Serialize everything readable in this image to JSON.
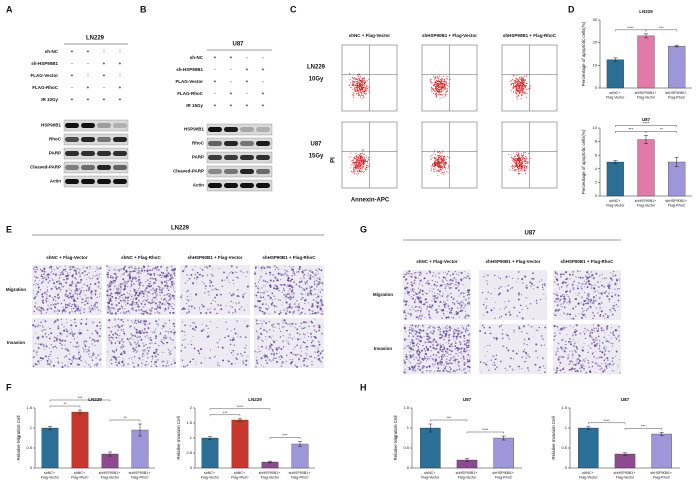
{
  "panel_labels": [
    "A",
    "B",
    "C",
    "D",
    "E",
    "F",
    "G",
    "H"
  ],
  "blot_a": {
    "cell_line": "LN229",
    "rows": [
      {
        "label": "sh-NC",
        "signs": [
          "+",
          "+",
          "-",
          "-"
        ]
      },
      {
        "label": "sh-HSP90B1",
        "signs": [
          "-",
          "-",
          "+",
          "+"
        ]
      },
      {
        "label": "FLAG-Vector",
        "signs": [
          "+",
          "-",
          "+",
          "-"
        ]
      },
      {
        "label": "FLAG-RhoC",
        "signs": [
          "-",
          "+",
          "-",
          "+"
        ]
      },
      {
        "label": "IR 10Gy",
        "signs": [
          "+",
          "+",
          "+",
          "+"
        ]
      }
    ],
    "bands": [
      "HSP90B1",
      "RhoC",
      "PARP",
      "Cleaved-PARP",
      "Actin"
    ]
  },
  "blot_b": {
    "cell_line": "U87",
    "rows": [
      {
        "label": "sh-NC",
        "signs": [
          "+",
          "+",
          "-",
          "-"
        ]
      },
      {
        "label": "sh-HSP90B1",
        "signs": [
          "-",
          "-",
          "+",
          "+"
        ]
      },
      {
        "label": "FLAG-Vector",
        "signs": [
          "+",
          "-",
          "+",
          "-"
        ]
      },
      {
        "label": "FLAG-RhoC",
        "signs": [
          "-",
          "+",
          "-",
          "+"
        ]
      },
      {
        "label": "IR 15Gy",
        "signs": [
          "+",
          "+",
          "+",
          "+"
        ]
      }
    ],
    "bands": [
      "HSP90B1",
      "RhoC",
      "PARP",
      "Cleaved-PARP",
      "Actin"
    ]
  },
  "flow": {
    "columns": [
      "shNC + Flag-Vector",
      "shHSP90B1 + Flag-Vector",
      "shHSP90B1 + Flag-RhoC"
    ],
    "rows": [
      [
        "LN229",
        "10Gy"
      ],
      [
        "U87",
        "15Gy"
      ]
    ],
    "y_label": "PI",
    "x_label": "Annexin-APC"
  },
  "microscopy_e": {
    "title": "LN229",
    "columns": [
      "shNC + Flag-Vector",
      "shNC + Flag-RhoC",
      "shHSP90B1 + Flag-Vector",
      "shHSP90B1 + Flag-RhoC"
    ],
    "rows": [
      "Migration",
      "Invasion"
    ]
  },
  "microscopy_g": {
    "title": "U87",
    "columns": [
      "shNC + Flag-Vector",
      "shHSP90B1 + Flag-Vector",
      "shHSP90B1 + Flag-RhoC"
    ],
    "rows": [
      "Migration",
      "Invasion"
    ]
  },
  "chart_data": [
    {
      "type": "bar",
      "title": "LN229",
      "y_label": "Percentage of apoptotic cells(%)",
      "categories": [
        "shNC+ Flag-Vector",
        "shHSP90B1+ Flag-Vector",
        "shHSP90B1+ Flag-RhoC"
      ],
      "values": [
        12.5,
        23,
        18.5
      ],
      "errors": [
        0.8,
        0.9,
        0.4
      ],
      "colors": [
        "#2b6e96",
        "#e07aa9",
        "#9d97d9"
      ],
      "ylim": [
        0,
        30
      ],
      "yticks": [
        0,
        10,
        20,
        30
      ],
      "significance": [
        {
          "pair": [
            0,
            1
          ],
          "label": "****"
        },
        {
          "pair": [
            1,
            2
          ],
          "label": "***"
        }
      ]
    },
    {
      "type": "bar",
      "title": "U87",
      "y_label": "Percentage of apoptotic cells(%)",
      "categories": [
        "shNC+ Flag-Vector",
        "shHSP90B1+ Flag-Vector",
        "shHSP90B1+ Flag-RhoC"
      ],
      "values": [
        5,
        8.3,
        5
      ],
      "errors": [
        0.2,
        0.6,
        0.7
      ],
      "colors": [
        "#2b6e96",
        "#e07aa9",
        "#9d97d9"
      ],
      "ylim": [
        0,
        10
      ],
      "yticks": [
        0,
        2,
        4,
        6,
        8,
        10
      ],
      "significance": [
        {
          "pair": [
            0,
            1
          ],
          "label": "***"
        },
        {
          "pair": [
            1,
            2
          ],
          "label": "**"
        },
        {
          "pair": [
            0,
            2
          ],
          "label": "****"
        }
      ]
    },
    {
      "type": "bar",
      "title": "LN229",
      "y_label": "Relative Migration Cell",
      "categories": [
        "shNC+ Flag-Vector",
        "shNC+ Flag-RhoC",
        "shHSP90B1+ Flag-Vector",
        "shHSP90B1+ Flag-RhoC"
      ],
      "values": [
        1.0,
        1.4,
        0.35,
        0.95
      ],
      "errors": [
        0.04,
        0.05,
        0.05,
        0.15
      ],
      "colors": [
        "#2b6e96",
        "#c8372d",
        "#8c4a8f",
        "#9d97d9"
      ],
      "ylim": [
        0,
        1.5
      ],
      "yticks": [
        0,
        0.5,
        1,
        1.5
      ],
      "significance": [
        {
          "pair": [
            0,
            1
          ],
          "label": "**"
        },
        {
          "pair": [
            2,
            3
          ],
          "label": "**"
        },
        {
          "pair": [
            0,
            2
          ],
          "label": "***"
        }
      ]
    },
    {
      "type": "bar",
      "title": "LN229",
      "y_label": "Relative Invasion Cell",
      "categories": [
        "shNC+ Flag-Vector",
        "shNC+ Flag-RhoC",
        "shHSP90B1+ Flag-Vector",
        "shHSP90B1+ Flag-RhoC"
      ],
      "values": [
        1.0,
        1.6,
        0.2,
        0.8
      ],
      "errors": [
        0.05,
        0.04,
        0.03,
        0.08
      ],
      "colors": [
        "#2b6e96",
        "#c8372d",
        "#8c4a8f",
        "#9d97d9"
      ],
      "ylim": [
        0,
        2
      ],
      "yticks": [
        0,
        0.5,
        1,
        1.5,
        2
      ],
      "significance": [
        {
          "pair": [
            0,
            1
          ],
          "label": "***"
        },
        {
          "pair": [
            2,
            3
          ],
          "label": "***"
        },
        {
          "pair": [
            0,
            2
          ],
          "label": "****"
        }
      ]
    },
    {
      "type": "bar",
      "title": "U87",
      "y_label": "Relative Migration Cell",
      "categories": [
        "shNC+ Flag-Vector",
        "shHSP90B1+ Flag-Vector",
        "shHSP90B1+ Flag-RhoC"
      ],
      "values": [
        1.0,
        0.2,
        0.75
      ],
      "errors": [
        0.1,
        0.04,
        0.05
      ],
      "colors": [
        "#2b6e96",
        "#8c4a8f",
        "#9d97d9"
      ],
      "ylim": [
        0,
        1.5
      ],
      "yticks": [
        0,
        0.5,
        1,
        1.5
      ],
      "significance": [
        {
          "pair": [
            0,
            1
          ],
          "label": "***"
        },
        {
          "pair": [
            1,
            2
          ],
          "label": "****"
        }
      ]
    },
    {
      "type": "bar",
      "title": "U87",
      "y_label": "Relative Invasion Cell",
      "categories": [
        "shNC+ Flag-Vector",
        "shHSP90B1+ Flag-Vector",
        "shHSP90B1+ Flag-RhoC"
      ],
      "values": [
        1.0,
        0.35,
        0.85
      ],
      "errors": [
        0.03,
        0.03,
        0.04
      ],
      "colors": [
        "#2b6e96",
        "#8c4a8f",
        "#9d97d9"
      ],
      "ylim": [
        0,
        1.5
      ],
      "yticks": [
        0,
        0.5,
        1,
        1.5
      ],
      "significance": [
        {
          "pair": [
            0,
            1
          ],
          "label": "****"
        },
        {
          "pair": [
            1,
            2
          ],
          "label": "***"
        }
      ]
    }
  ]
}
